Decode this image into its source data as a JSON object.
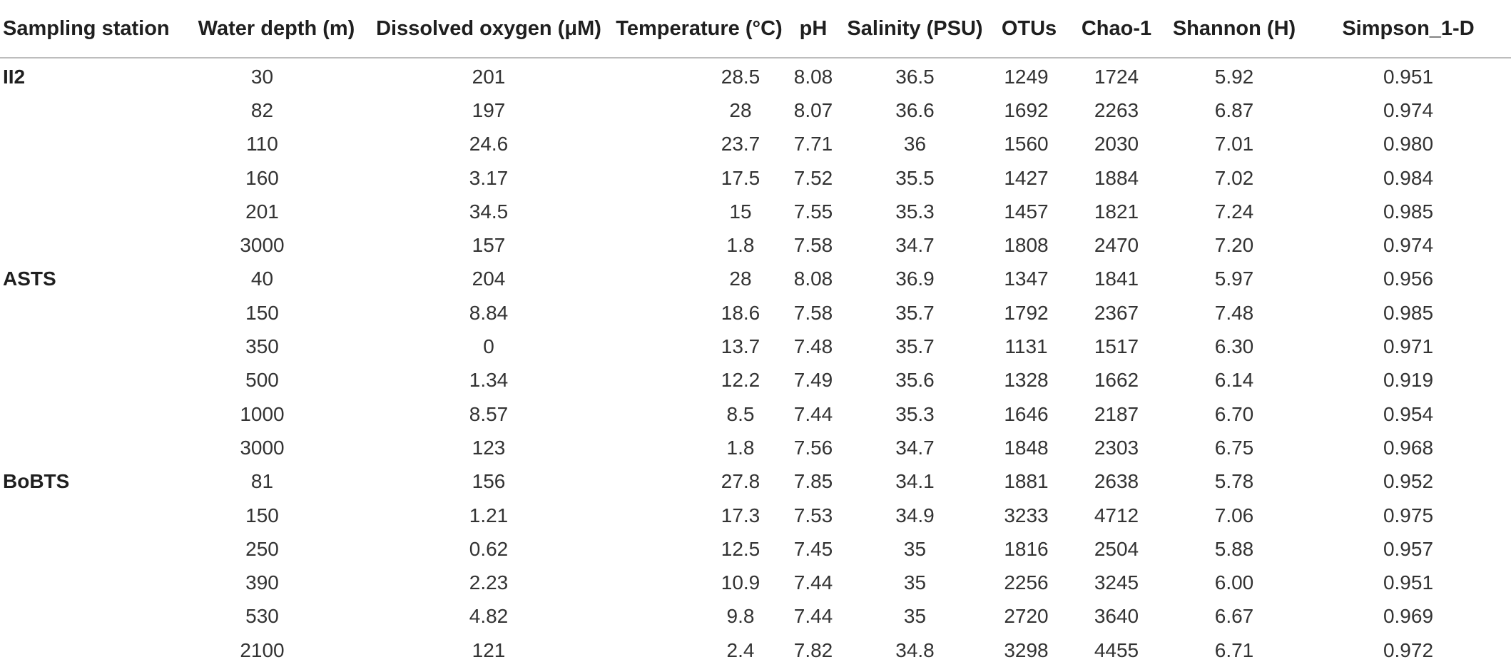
{
  "table": {
    "headers": [
      "Sampling station",
      "Water depth (m)",
      "Dissolved oxygen (μM)",
      "Temperature (°C)",
      "pH",
      "Salinity (PSU)",
      "OTUs",
      "Chao-1",
      "Shannon (H)",
      "Simpson_1-D"
    ],
    "rows": [
      [
        "II2",
        "30",
        "201",
        "28.5",
        "8.08",
        "36.5",
        "1249",
        "1724",
        "5.92",
        "0.951"
      ],
      [
        "",
        "82",
        "197",
        "28",
        "8.07",
        "36.6",
        "1692",
        "2263",
        "6.87",
        "0.974"
      ],
      [
        "",
        "110",
        "24.6",
        "23.7",
        "7.71",
        "36",
        "1560",
        "2030",
        "7.01",
        "0.980"
      ],
      [
        "",
        "160",
        "3.17",
        "17.5",
        "7.52",
        "35.5",
        "1427",
        "1884",
        "7.02",
        "0.984"
      ],
      [
        "",
        "201",
        "34.5",
        "15",
        "7.55",
        "35.3",
        "1457",
        "1821",
        "7.24",
        "0.985"
      ],
      [
        "",
        "3000",
        "157",
        "1.8",
        "7.58",
        "34.7",
        "1808",
        "2470",
        "7.20",
        "0.974"
      ],
      [
        "ASTS",
        "40",
        "204",
        "28",
        "8.08",
        "36.9",
        "1347",
        "1841",
        "5.97",
        "0.956"
      ],
      [
        "",
        "150",
        "8.84",
        "18.6",
        "7.58",
        "35.7",
        "1792",
        "2367",
        "7.48",
        "0.985"
      ],
      [
        "",
        "350",
        "0",
        "13.7",
        "7.48",
        "35.7",
        "1131",
        "1517",
        "6.30",
        "0.971"
      ],
      [
        "",
        "500",
        "1.34",
        "12.2",
        "7.49",
        "35.6",
        "1328",
        "1662",
        "6.14",
        "0.919"
      ],
      [
        "",
        "1000",
        "8.57",
        "8.5",
        "7.44",
        "35.3",
        "1646",
        "2187",
        "6.70",
        "0.954"
      ],
      [
        "",
        "3000",
        "123",
        "1.8",
        "7.56",
        "34.7",
        "1848",
        "2303",
        "6.75",
        "0.968"
      ],
      [
        "BoBTS",
        "81",
        "156",
        "27.8",
        "7.85",
        "34.1",
        "1881",
        "2638",
        "5.78",
        "0.952"
      ],
      [
        "",
        "150",
        "1.21",
        "17.3",
        "7.53",
        "34.9",
        "3233",
        "4712",
        "7.06",
        "0.975"
      ],
      [
        "",
        "250",
        "0.62",
        "12.5",
        "7.45",
        "35",
        "1816",
        "2504",
        "5.88",
        "0.957"
      ],
      [
        "",
        "390",
        "2.23",
        "10.9",
        "7.44",
        "35",
        "2256",
        "3245",
        "6.00",
        "0.951"
      ],
      [
        "",
        "530",
        "4.82",
        "9.8",
        "7.44",
        "35",
        "2720",
        "3640",
        "6.67",
        "0.969"
      ],
      [
        "",
        "2100",
        "121",
        "2.4",
        "7.82",
        "34.8",
        "3298",
        "4455",
        "6.71",
        "0.972"
      ]
    ]
  }
}
